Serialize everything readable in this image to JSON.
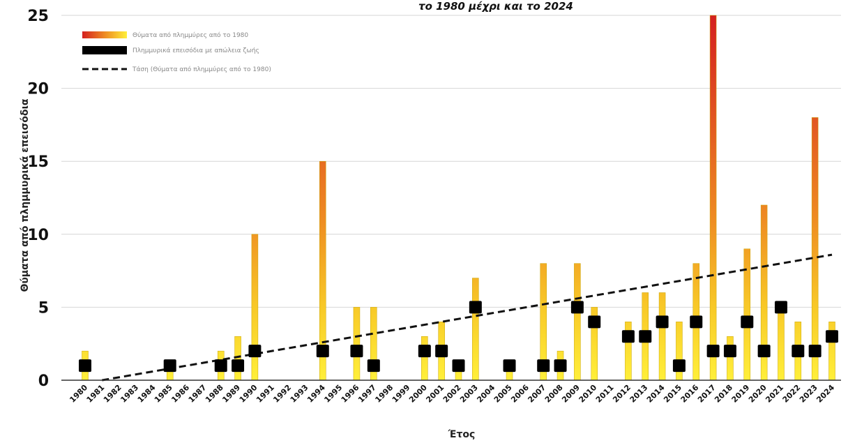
{
  "chart_data": {
    "type": "bar",
    "title": "το 1980 μέχρι και το 2024",
    "xlabel": "Έτος",
    "ylabel": "Θύματα από πλημμυρικά επεισόδια",
    "ylim": [
      0,
      25
    ],
    "yticks": [
      0,
      5,
      10,
      15,
      20,
      25
    ],
    "grid": true,
    "legend_position": "top-left",
    "categories": [
      "1980",
      "1981",
      "1982",
      "1983",
      "1984",
      "1985",
      "1986",
      "1987",
      "1988",
      "1989",
      "1990",
      "1991",
      "1992",
      "1993",
      "1994",
      "1995",
      "1996",
      "1997",
      "1998",
      "1999",
      "2000",
      "2001",
      "2002",
      "2003",
      "2004",
      "2005",
      "2006",
      "2007",
      "2008",
      "2009",
      "2010",
      "2011",
      "2012",
      "2013",
      "2014",
      "2015",
      "2016",
      "2017",
      "2018",
      "2019",
      "2020",
      "2021",
      "2022",
      "2023",
      "2024"
    ],
    "series": [
      {
        "name": "Θύματα από πλημμύρες από το 1980",
        "kind": "bar",
        "color_low": "#ffef3a",
        "color_high": "#d42020",
        "values": [
          2,
          0,
          0,
          0,
          0,
          1,
          0,
          0,
          2,
          3,
          10,
          0,
          0,
          0,
          15,
          0,
          5,
          5,
          0,
          0,
          3,
          4,
          1,
          7,
          0,
          1,
          0,
          8,
          2,
          8,
          5,
          0,
          4,
          6,
          6,
          4,
          8,
          25,
          3,
          9,
          12,
          5,
          4,
          18,
          4
        ]
      },
      {
        "name": "Πλημμυρικά επεισόδια με απώλεια ζωής",
        "kind": "marker",
        "color": "#000000",
        "values": [
          1,
          0,
          0,
          0,
          0,
          1,
          0,
          0,
          1,
          1,
          2,
          0,
          0,
          0,
          2,
          0,
          2,
          1,
          0,
          0,
          2,
          2,
          1,
          5,
          0,
          1,
          0,
          1,
          1,
          5,
          4,
          0,
          3,
          3,
          4,
          1,
          4,
          2,
          2,
          4,
          2,
          5,
          2,
          2,
          3
        ]
      },
      {
        "name": "Τάση (Θύματα από πλημμύρες από το 1980)",
        "kind": "trendline",
        "color": "#111111",
        "start": [
          1981,
          0
        ],
        "end": [
          2024,
          8.6
        ]
      }
    ]
  }
}
